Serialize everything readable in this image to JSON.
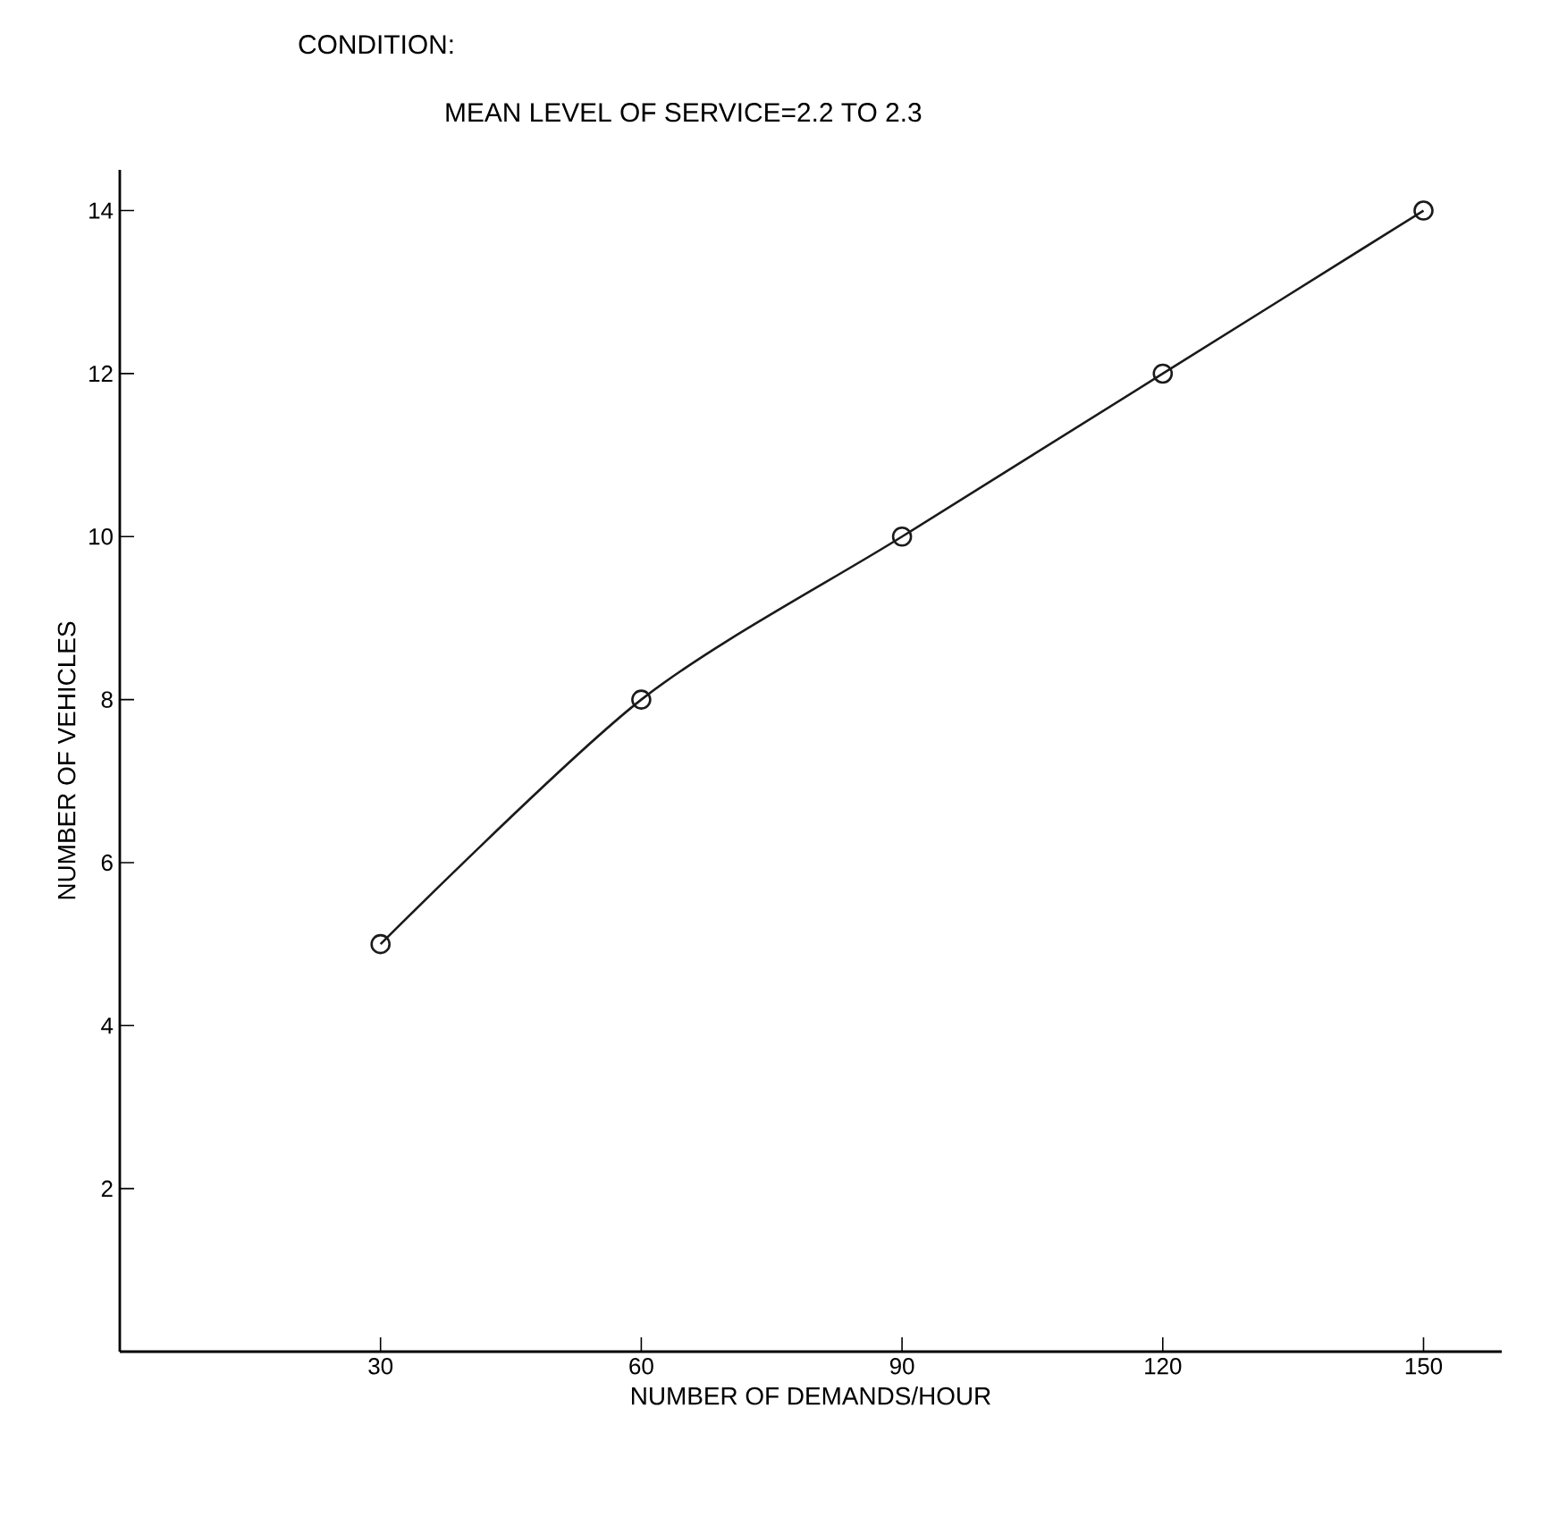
{
  "chart_data": {
    "type": "line",
    "title": "CONDITION:",
    "subtitle": "MEAN LEVEL OF SERVICE=2.2 TO 2.3",
    "xlabel": "NUMBER OF DEMANDS/HOUR",
    "ylabel": "NUMBER OF VEHICLES",
    "x": [
      30,
      60,
      90,
      120,
      150
    ],
    "series": [
      {
        "color": "#1a1a1a",
        "values": [
          5,
          8,
          10,
          12,
          14
        ]
      }
    ],
    "xlim": [
      0,
      159
    ],
    "ylim": [
      0,
      14.5
    ],
    "xticks": [
      30,
      60,
      90,
      120,
      150
    ],
    "yticks": [
      2,
      4,
      6,
      8,
      10,
      12,
      14
    ],
    "grid": false,
    "legend": false,
    "marker": "circle",
    "line_style": "solid"
  }
}
